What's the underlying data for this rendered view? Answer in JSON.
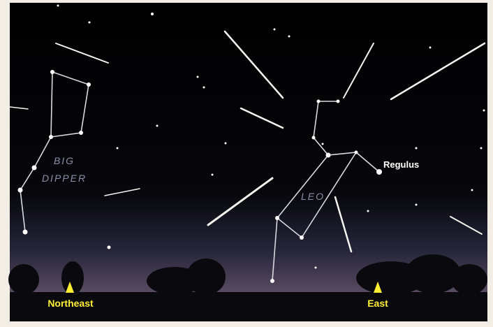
{
  "labels": {
    "big_dipper": [
      "BIG",
      "DIPPER"
    ],
    "leo": "LEO",
    "regulus": "Regulus",
    "northeast": "Northeast",
    "east": "East"
  }
}
